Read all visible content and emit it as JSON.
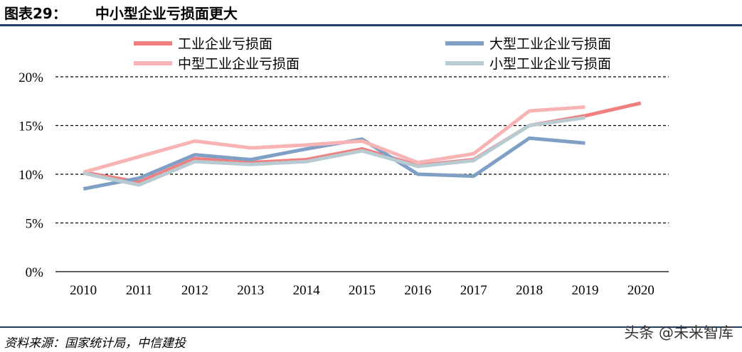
{
  "header": {
    "figure_label": "图表29：",
    "title": "中小型企业亏损面更大"
  },
  "footer": {
    "source": "资料来源：国家统计局，中信建投",
    "watermark": "头条 @未来智库"
  },
  "chart_data": {
    "type": "line",
    "x": [
      "2010",
      "2011",
      "2012",
      "2013",
      "2014",
      "2015",
      "2016",
      "2017",
      "2018",
      "2019",
      "2020"
    ],
    "yticks": [
      "0%",
      "5%",
      "10%",
      "15%",
      "20%"
    ],
    "ylim": [
      0,
      20
    ],
    "grid": "horizontal dashed",
    "legend_position": "top",
    "series": [
      {
        "name": "工业企业亏损面",
        "color": "#f08080",
        "values": [
          10.2,
          9.2,
          11.6,
          11.2,
          11.5,
          12.6,
          10.9,
          11.5,
          15.0,
          16.0,
          17.3
        ]
      },
      {
        "name": "大型工业企业亏损面",
        "color": "#7f9fc4",
        "values": [
          8.5,
          9.6,
          12.0,
          11.5,
          12.6,
          13.6,
          10.0,
          9.8,
          13.7,
          13.2,
          null
        ]
      },
      {
        "name": "中型工业企业亏损面",
        "color": "#f8b4b4",
        "values": [
          10.2,
          11.8,
          13.4,
          12.7,
          13.0,
          13.4,
          11.2,
          12.1,
          16.5,
          16.9,
          null
        ]
      },
      {
        "name": "小型工业企业亏损面",
        "color": "#b8cbd3",
        "values": [
          10.1,
          8.9,
          11.3,
          11.0,
          11.3,
          12.4,
          10.8,
          11.4,
          15.0,
          15.8,
          null
        ]
      }
    ]
  }
}
